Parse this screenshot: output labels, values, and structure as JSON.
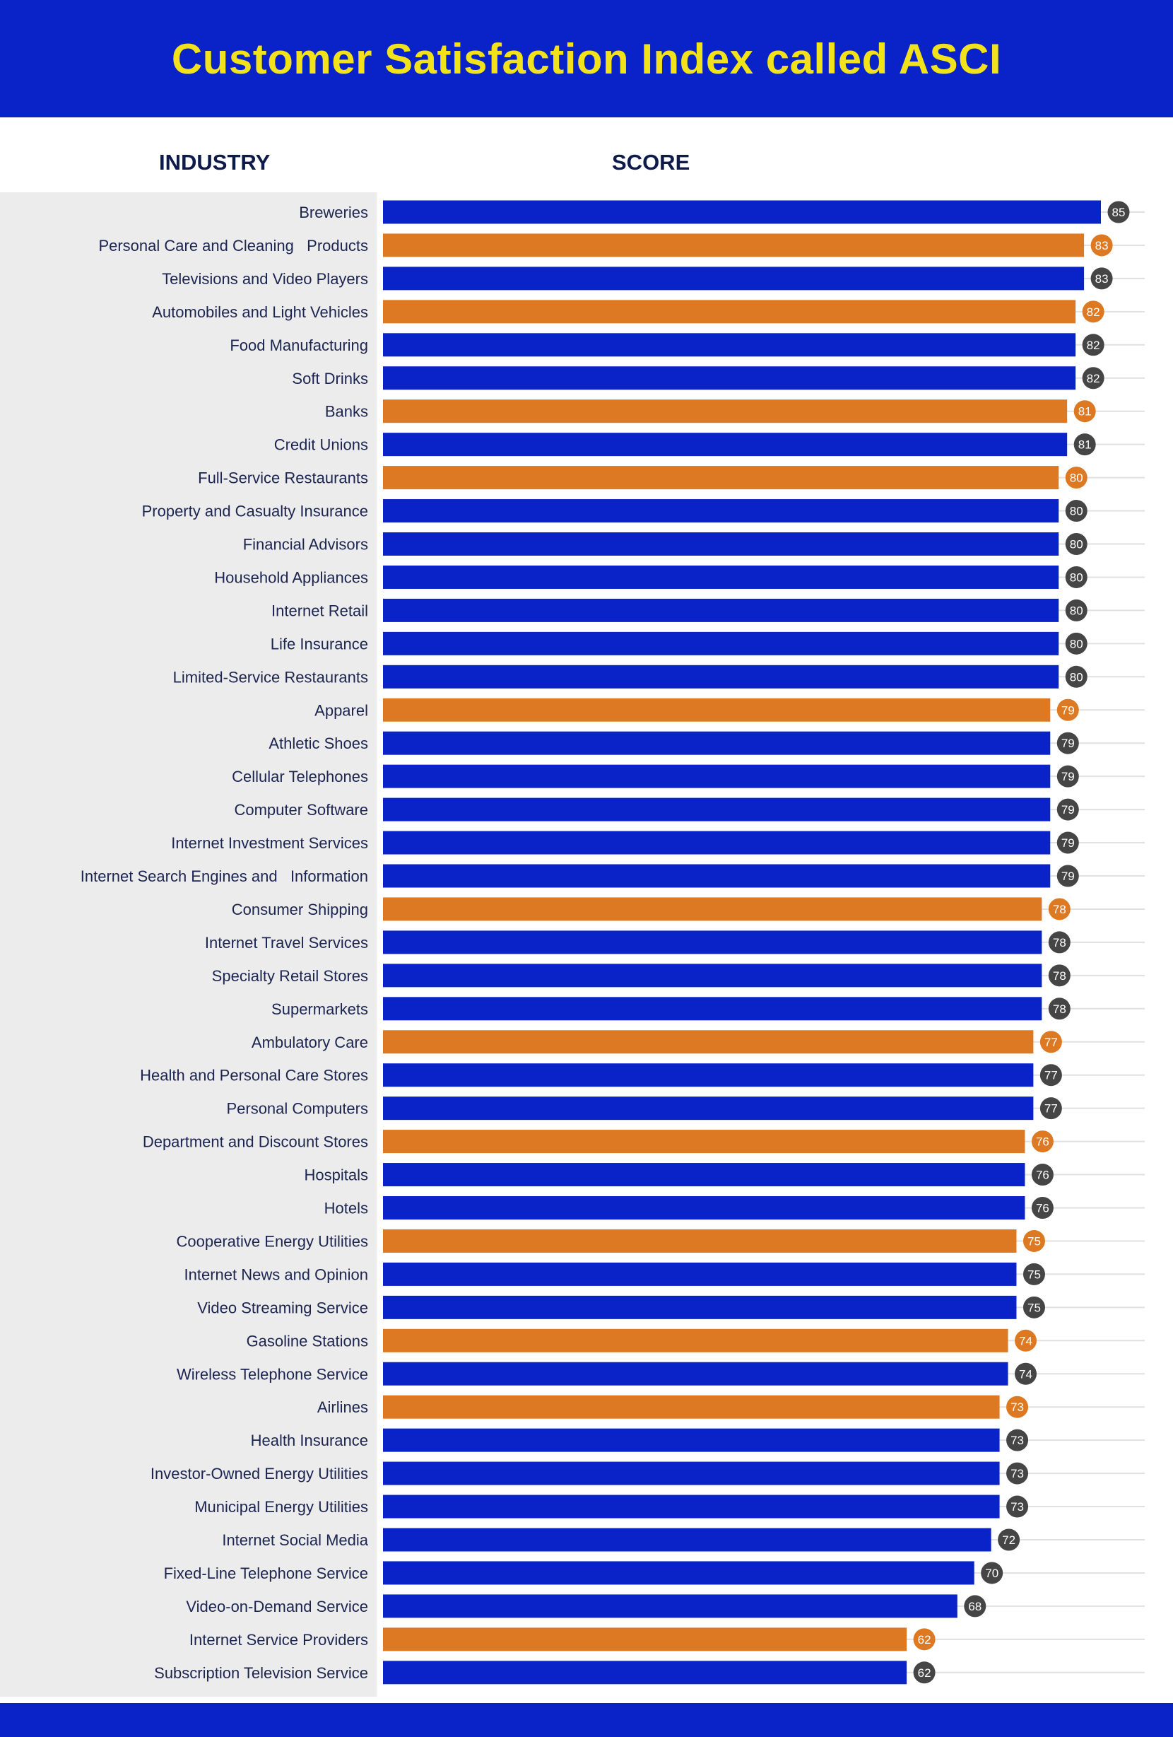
{
  "header": {
    "title": "Customer Satisfaction Index called ASCI"
  },
  "columns": {
    "industry": "INDUSTRY",
    "score": "SCORE"
  },
  "colors": {
    "primary": "#0a23c8",
    "highlight": "#dd7922",
    "title": "#f2e21b",
    "badge_dark": "#454545"
  },
  "chart_data": {
    "type": "bar",
    "orientation": "horizontal",
    "title": "Customer Satisfaction Index called ASCI",
    "xlabel": "SCORE",
    "ylabel": "INDUSTRY",
    "xlim": [
      0,
      85
    ],
    "grid": true,
    "categories": [
      "Breweries",
      "Personal Care and Cleaning   Products",
      "Televisions and Video Players",
      "Automobiles and Light Vehicles",
      "Food Manufacturing",
      "Soft Drinks",
      "Banks",
      "Credit Unions",
      "Full-Service Restaurants",
      "Property and Casualty Insurance",
      "Financial Advisors",
      "Household Appliances",
      "Internet Retail",
      "Life Insurance",
      "Limited-Service Restaurants",
      "Apparel",
      "Athletic Shoes",
      "Cellular Telephones",
      "Computer Software",
      "Internet Investment Services",
      "Internet Search Engines and   Information",
      "Consumer Shipping",
      "Internet Travel Services",
      "Specialty Retail Stores",
      "Supermarkets",
      "Ambulatory Care",
      "Health and Personal Care Stores",
      "Personal Computers",
      "Department and Discount Stores",
      "Hospitals",
      "Hotels",
      "Cooperative Energy Utilities",
      "Internet News and Opinion",
      "Video Streaming Service",
      "Gasoline Stations",
      "Wireless Telephone Service",
      "Airlines",
      "Health Insurance",
      "Investor-Owned Energy Utilities",
      "Municipal Energy Utilities",
      "Internet Social Media",
      "Fixed-Line Telephone Service",
      "Video-on-Demand Service",
      "Internet Service Providers",
      "Subscription Television Service"
    ],
    "values": [
      85,
      83,
      83,
      82,
      82,
      82,
      81,
      81,
      80,
      80,
      80,
      80,
      80,
      80,
      80,
      79,
      79,
      79,
      79,
      79,
      79,
      78,
      78,
      78,
      78,
      77,
      77,
      77,
      76,
      76,
      76,
      75,
      75,
      75,
      74,
      74,
      73,
      73,
      73,
      73,
      72,
      70,
      68,
      62,
      62
    ],
    "highlighted": [
      false,
      true,
      false,
      true,
      false,
      false,
      true,
      false,
      true,
      false,
      false,
      false,
      false,
      false,
      false,
      true,
      false,
      false,
      false,
      false,
      false,
      true,
      false,
      false,
      false,
      true,
      false,
      false,
      true,
      false,
      false,
      true,
      false,
      false,
      true,
      false,
      true,
      false,
      false,
      false,
      false,
      false,
      false,
      true,
      false
    ]
  }
}
